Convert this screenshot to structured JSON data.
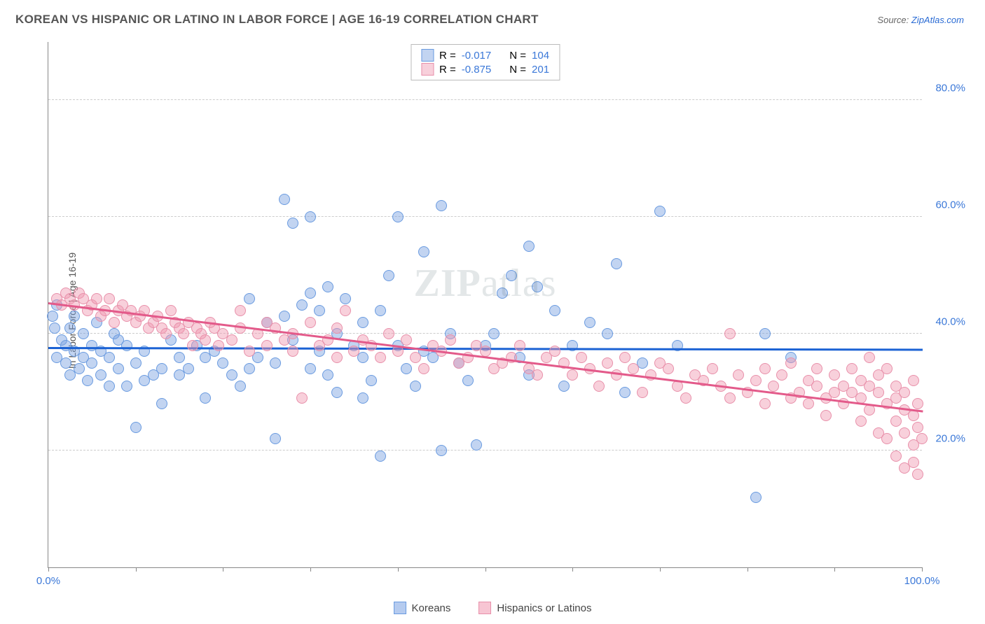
{
  "title": "KOREAN VS HISPANIC OR LATINO IN LABOR FORCE | AGE 16-19 CORRELATION CHART",
  "source_label": "Source:",
  "source_link": "ZipAtlas.com",
  "ylabel": "In Labor Force | Age 16-19",
  "watermark": "ZIPatlas",
  "chart": {
    "type": "scatter",
    "xlim": [
      0,
      100
    ],
    "ylim": [
      0,
      90
    ],
    "x_ticks": [
      0,
      10,
      20,
      30,
      40,
      50,
      60,
      70,
      80,
      90,
      100
    ],
    "x_tick_labels": {
      "0": "0.0%",
      "100": "100.0%"
    },
    "y_gridlines": [
      20,
      40,
      60,
      80
    ],
    "y_tick_labels": {
      "20": "20.0%",
      "40": "40.0%",
      "60": "60.0%",
      "80": "80.0%"
    },
    "grid_color": "#cccccc",
    "axis_color": "#888888",
    "background": "#ffffff",
    "point_radius": 8,
    "series": [
      {
        "key": "koreans",
        "label": "Koreans",
        "fill": "rgba(120,160,225,0.45)",
        "stroke": "#6a9be0",
        "trend_color": "#1b62d4",
        "R": "-0.017",
        "N": "104",
        "trend": {
          "x1": 0,
          "y1": 37.8,
          "x2": 100,
          "y2": 37.5
        },
        "points": [
          [
            0.5,
            43
          ],
          [
            0.7,
            41
          ],
          [
            1,
            45
          ],
          [
            1,
            36
          ],
          [
            1.5,
            39
          ],
          [
            2,
            38
          ],
          [
            2,
            35
          ],
          [
            2.5,
            41
          ],
          [
            2.5,
            33
          ],
          [
            3,
            37
          ],
          [
            3,
            43
          ],
          [
            3.5,
            34
          ],
          [
            4,
            36
          ],
          [
            4,
            40
          ],
          [
            4.5,
            32
          ],
          [
            5,
            38
          ],
          [
            5,
            35
          ],
          [
            5.5,
            42
          ],
          [
            6,
            33
          ],
          [
            6,
            37
          ],
          [
            7,
            31
          ],
          [
            7,
            36
          ],
          [
            7.5,
            40
          ],
          [
            8,
            34
          ],
          [
            8,
            39
          ],
          [
            9,
            31
          ],
          [
            9,
            38
          ],
          [
            10,
            35
          ],
          [
            10,
            24
          ],
          [
            11,
            32
          ],
          [
            11,
            37
          ],
          [
            12,
            33
          ],
          [
            13,
            34
          ],
          [
            13,
            28
          ],
          [
            14,
            39
          ],
          [
            15,
            36
          ],
          [
            15,
            33
          ],
          [
            16,
            34
          ],
          [
            17,
            38
          ],
          [
            18,
            36
          ],
          [
            18,
            29
          ],
          [
            19,
            37
          ],
          [
            20,
            35
          ],
          [
            21,
            33
          ],
          [
            22,
            31
          ],
          [
            23,
            46
          ],
          [
            23,
            34
          ],
          [
            24,
            36
          ],
          [
            25,
            42
          ],
          [
            26,
            35
          ],
          [
            26,
            22
          ],
          [
            27,
            43
          ],
          [
            27,
            63
          ],
          [
            28,
            59
          ],
          [
            28,
            39
          ],
          [
            29,
            45
          ],
          [
            30,
            47
          ],
          [
            30,
            34
          ],
          [
            30,
            60
          ],
          [
            31,
            37
          ],
          [
            31,
            44
          ],
          [
            32,
            33
          ],
          [
            32,
            48
          ],
          [
            33,
            40
          ],
          [
            33,
            30
          ],
          [
            34,
            46
          ],
          [
            35,
            38
          ],
          [
            36,
            36
          ],
          [
            36,
            42
          ],
          [
            36,
            29
          ],
          [
            37,
            32
          ],
          [
            38,
            19
          ],
          [
            38,
            44
          ],
          [
            39,
            50
          ],
          [
            40,
            38
          ],
          [
            40,
            60
          ],
          [
            41,
            34
          ],
          [
            42,
            31
          ],
          [
            43,
            37
          ],
          [
            43,
            54
          ],
          [
            44,
            36
          ],
          [
            45,
            20
          ],
          [
            45,
            62
          ],
          [
            46,
            40
          ],
          [
            47,
            35
          ],
          [
            48,
            32
          ],
          [
            49,
            21
          ],
          [
            50,
            38
          ],
          [
            51,
            40
          ],
          [
            52,
            47
          ],
          [
            53,
            50
          ],
          [
            54,
            36
          ],
          [
            55,
            33
          ],
          [
            55,
            55
          ],
          [
            56,
            48
          ],
          [
            58,
            44
          ],
          [
            59,
            31
          ],
          [
            60,
            38
          ],
          [
            62,
            42
          ],
          [
            64,
            40
          ],
          [
            65,
            52
          ],
          [
            66,
            30
          ],
          [
            68,
            35
          ],
          [
            70,
            61
          ],
          [
            72,
            38
          ],
          [
            81,
            12
          ],
          [
            82,
            40
          ],
          [
            85,
            36
          ]
        ]
      },
      {
        "key": "hispanics",
        "label": "Hispanics or Latinos",
        "fill": "rgba(240,150,175,0.45)",
        "stroke": "#e890aa",
        "trend_color": "#e35a8a",
        "R": "-0.875",
        "N": "201",
        "trend": {
          "x1": 0,
          "y1": 45.5,
          "x2": 100,
          "y2": 27
        },
        "points": [
          [
            1,
            46
          ],
          [
            1.5,
            45
          ],
          [
            2,
            47
          ],
          [
            2.5,
            46
          ],
          [
            3,
            45
          ],
          [
            3.5,
            47
          ],
          [
            4,
            46
          ],
          [
            4.5,
            44
          ],
          [
            5,
            45
          ],
          [
            5.5,
            46
          ],
          [
            6,
            43
          ],
          [
            6.5,
            44
          ],
          [
            7,
            46
          ],
          [
            7.5,
            42
          ],
          [
            8,
            44
          ],
          [
            8.5,
            45
          ],
          [
            9,
            43
          ],
          [
            9.5,
            44
          ],
          [
            10,
            42
          ],
          [
            10.5,
            43
          ],
          [
            11,
            44
          ],
          [
            11.5,
            41
          ],
          [
            12,
            42
          ],
          [
            12.5,
            43
          ],
          [
            13,
            41
          ],
          [
            13.5,
            40
          ],
          [
            14,
            44
          ],
          [
            14.5,
            42
          ],
          [
            15,
            41
          ],
          [
            15.5,
            40
          ],
          [
            16,
            42
          ],
          [
            16.5,
            38
          ],
          [
            17,
            41
          ],
          [
            17.5,
            40
          ],
          [
            18,
            39
          ],
          [
            18.5,
            42
          ],
          [
            19,
            41
          ],
          [
            19.5,
            38
          ],
          [
            20,
            40
          ],
          [
            21,
            39
          ],
          [
            22,
            41
          ],
          [
            22,
            44
          ],
          [
            23,
            37
          ],
          [
            24,
            40
          ],
          [
            25,
            38
          ],
          [
            25,
            42
          ],
          [
            26,
            41
          ],
          [
            27,
            39
          ],
          [
            28,
            40
          ],
          [
            28,
            37
          ],
          [
            29,
            29
          ],
          [
            30,
            42
          ],
          [
            31,
            38
          ],
          [
            32,
            39
          ],
          [
            33,
            36
          ],
          [
            33,
            41
          ],
          [
            34,
            44
          ],
          [
            35,
            37
          ],
          [
            36,
            39
          ],
          [
            37,
            38
          ],
          [
            38,
            36
          ],
          [
            39,
            40
          ],
          [
            40,
            37
          ],
          [
            41,
            39
          ],
          [
            42,
            36
          ],
          [
            43,
            34
          ],
          [
            44,
            38
          ],
          [
            45,
            37
          ],
          [
            46,
            39
          ],
          [
            47,
            35
          ],
          [
            48,
            36
          ],
          [
            49,
            38
          ],
          [
            50,
            37
          ],
          [
            51,
            34
          ],
          [
            52,
            35
          ],
          [
            53,
            36
          ],
          [
            54,
            38
          ],
          [
            55,
            34
          ],
          [
            56,
            33
          ],
          [
            57,
            36
          ],
          [
            58,
            37
          ],
          [
            59,
            35
          ],
          [
            60,
            33
          ],
          [
            61,
            36
          ],
          [
            62,
            34
          ],
          [
            63,
            31
          ],
          [
            64,
            35
          ],
          [
            65,
            33
          ],
          [
            66,
            36
          ],
          [
            67,
            34
          ],
          [
            68,
            30
          ],
          [
            69,
            33
          ],
          [
            70,
            35
          ],
          [
            71,
            34
          ],
          [
            72,
            31
          ],
          [
            73,
            29
          ],
          [
            74,
            33
          ],
          [
            75,
            32
          ],
          [
            76,
            34
          ],
          [
            77,
            31
          ],
          [
            78,
            29
          ],
          [
            78,
            40
          ],
          [
            79,
            33
          ],
          [
            80,
            30
          ],
          [
            81,
            32
          ],
          [
            82,
            34
          ],
          [
            82,
            28
          ],
          [
            83,
            31
          ],
          [
            84,
            33
          ],
          [
            85,
            29
          ],
          [
            85,
            35
          ],
          [
            86,
            30
          ],
          [
            87,
            28
          ],
          [
            87,
            32
          ],
          [
            88,
            31
          ],
          [
            88,
            34
          ],
          [
            89,
            29
          ],
          [
            89,
            26
          ],
          [
            90,
            30
          ],
          [
            90,
            33
          ],
          [
            91,
            31
          ],
          [
            91,
            28
          ],
          [
            92,
            34
          ],
          [
            92,
            30
          ],
          [
            93,
            25
          ],
          [
            93,
            32
          ],
          [
            93,
            29
          ],
          [
            94,
            36
          ],
          [
            94,
            27
          ],
          [
            94,
            31
          ],
          [
            95,
            30
          ],
          [
            95,
            23
          ],
          [
            95,
            33
          ],
          [
            96,
            28
          ],
          [
            96,
            22
          ],
          [
            96,
            34
          ],
          [
            97,
            29
          ],
          [
            97,
            19
          ],
          [
            97,
            31
          ],
          [
            97,
            25
          ],
          [
            98,
            23
          ],
          [
            98,
            30
          ],
          [
            98,
            27
          ],
          [
            98,
            17
          ],
          [
            99,
            26
          ],
          [
            99,
            21
          ],
          [
            99,
            32
          ],
          [
            99,
            18
          ],
          [
            99.5,
            24
          ],
          [
            99.5,
            28
          ],
          [
            99.5,
            16
          ],
          [
            100,
            22
          ]
        ]
      }
    ]
  },
  "legend": {
    "items": [
      {
        "label": "Koreans",
        "fill": "rgba(120,160,225,0.55)",
        "stroke": "#6a9be0"
      },
      {
        "label": "Hispanics or Latinos",
        "fill": "rgba(240,150,175,0.55)",
        "stroke": "#e890aa"
      }
    ]
  }
}
